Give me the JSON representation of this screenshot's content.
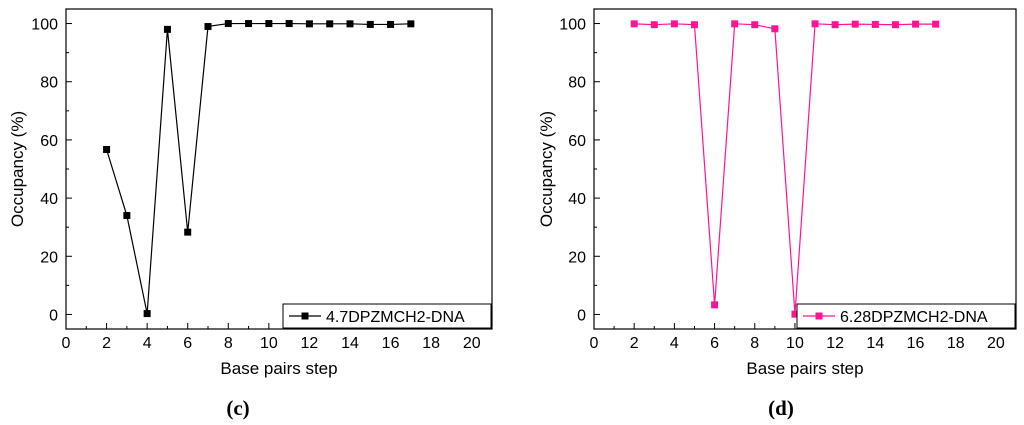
{
  "chart_data": [
    {
      "type": "line",
      "panel_label": "(c)",
      "xlabel": "Base pairs step",
      "ylabel": "Occupancy (%)",
      "xlim": [
        0,
        21
      ],
      "ylim": [
        -5,
        105
      ],
      "xticks": [
        0,
        2,
        4,
        6,
        8,
        10,
        12,
        14,
        16,
        18,
        20
      ],
      "yticks": [
        0,
        20,
        40,
        60,
        80,
        100
      ],
      "grid": false,
      "legend_position": "bottom-right",
      "color": "#000000",
      "series": [
        {
          "name": "4.7DPZMCH2-DNA",
          "x": [
            2,
            3,
            4,
            5,
            6,
            7,
            8,
            9,
            10,
            11,
            12,
            13,
            14,
            15,
            16,
            17
          ],
          "y": [
            56.7,
            34.0,
            0.3,
            98.0,
            28.3,
            99.0,
            100.0,
            100.0,
            100.0,
            100.0,
            99.9,
            99.9,
            99.9,
            99.7,
            99.7,
            99.9
          ]
        }
      ]
    },
    {
      "type": "line",
      "panel_label": "(d)",
      "xlabel": "Base pairs step",
      "ylabel": "Occupancy (%)",
      "xlim": [
        0,
        21
      ],
      "ylim": [
        -5,
        105
      ],
      "xticks": [
        0,
        2,
        4,
        6,
        8,
        10,
        12,
        14,
        16,
        18,
        20
      ],
      "yticks": [
        0,
        20,
        40,
        60,
        80,
        100
      ],
      "grid": false,
      "legend_position": "bottom-right",
      "color": "#ff1493",
      "series": [
        {
          "name": "6.28DPZMCH2-DNA",
          "x": [
            2,
            3,
            4,
            5,
            6,
            7,
            8,
            9,
            10,
            11,
            12,
            13,
            14,
            15,
            16,
            17
          ],
          "y": [
            99.9,
            99.6,
            99.9,
            99.6,
            3.3,
            99.9,
            99.6,
            98.2,
            0.1,
            99.9,
            99.6,
            99.8,
            99.7,
            99.6,
            99.8,
            99.8
          ]
        }
      ]
    }
  ]
}
